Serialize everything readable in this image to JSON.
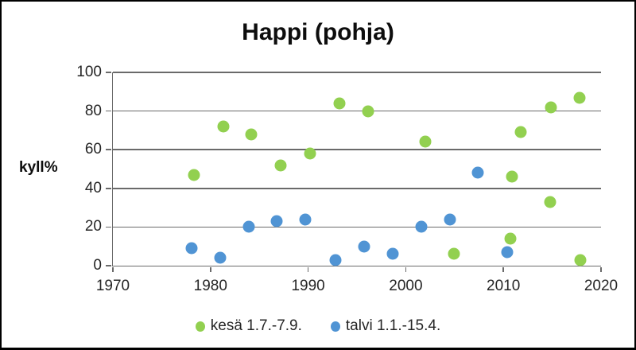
{
  "chart_data": {
    "type": "scatter",
    "title": "Happi (pohja)",
    "ylabel": "kyll%",
    "xlabel": "",
    "xlim": [
      1970,
      2020
    ],
    "ylim": [
      0,
      100
    ],
    "x_ticks": [
      1970,
      1980,
      1990,
      2000,
      2010,
      2020
    ],
    "y_ticks": [
      0,
      20,
      40,
      60,
      80,
      100
    ],
    "grid": "horizontal-on",
    "legend_position": "bottom",
    "series": [
      {
        "name": "kesä 1.7.-7.9.",
        "color": "#92d050",
        "points": [
          [
            1978.3,
            47
          ],
          [
            1981.3,
            72
          ],
          [
            1984.2,
            68
          ],
          [
            1987.2,
            52
          ],
          [
            1990.2,
            58
          ],
          [
            1993.2,
            84
          ],
          [
            1996.1,
            80
          ],
          [
            2002.0,
            64
          ],
          [
            2004.9,
            6
          ],
          [
            2010.7,
            14
          ],
          [
            2010.9,
            46
          ],
          [
            2011.8,
            69
          ],
          [
            2014.8,
            33
          ],
          [
            2014.9,
            82
          ],
          [
            2017.8,
            87
          ],
          [
            2017.9,
            3
          ]
        ]
      },
      {
        "name": "talvi 1.1.-15.4.",
        "color": "#5094d4",
        "points": [
          [
            1978.1,
            9
          ],
          [
            1981.0,
            4
          ],
          [
            1983.9,
            20
          ],
          [
            1986.8,
            23
          ],
          [
            1989.7,
            24
          ],
          [
            1992.8,
            3
          ],
          [
            1995.7,
            10
          ],
          [
            1998.7,
            6
          ],
          [
            2001.6,
            20
          ],
          [
            2004.5,
            24
          ],
          [
            2007.4,
            48
          ],
          [
            2010.4,
            7
          ]
        ]
      }
    ]
  }
}
